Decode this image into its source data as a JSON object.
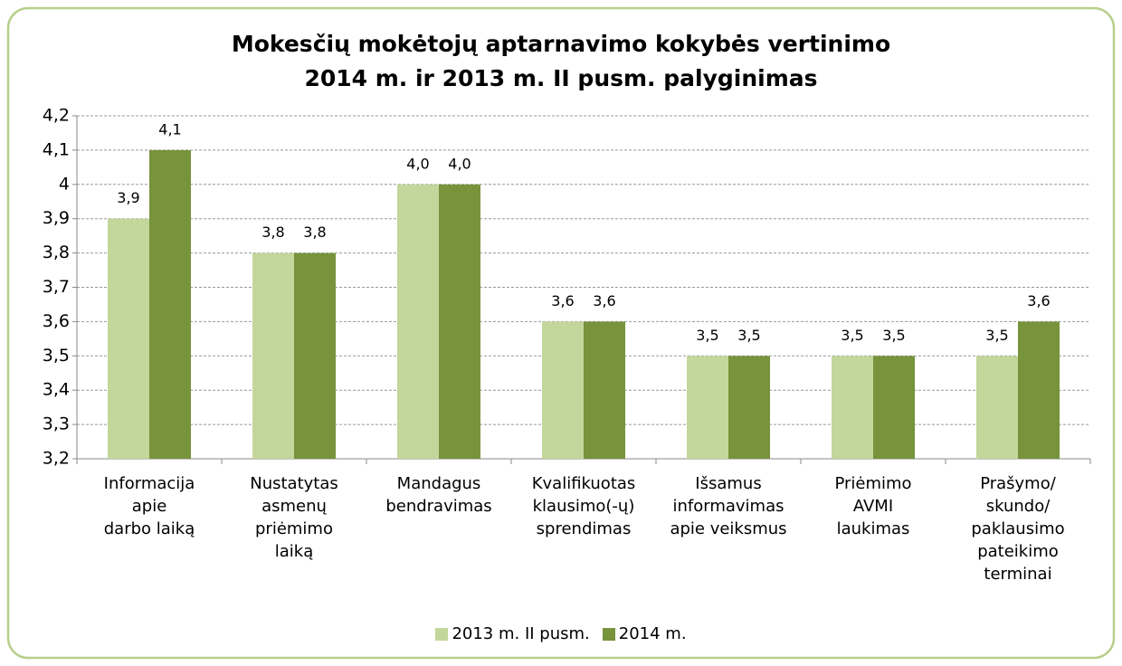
{
  "chart_data": {
    "type": "bar",
    "title": "Mokesčių mokėtojų aptarnavimo kokybės vertinimo\n2014 m. ir 2013 m. II pusm. palyginimas",
    "categories": [
      "Informacija\napie\ndarbo laiką",
      "Nustatytas\nasmenų\npriėmimo\nlaiką",
      "Mandagus\nbendravimas",
      "Kvalifikuotas\nklausimo(-ų)\nsprendimas",
      "Išsamus\ninformavimas\napie veiksmus",
      "Priėmimo\nAVMI\nlaukimas",
      "Prašymo/\nskundo/\npaklausimo\npateikimo\nterminai"
    ],
    "series": [
      {
        "name": "2013 m. II pusm.",
        "color": "#c3d69b",
        "values": [
          3.9,
          3.8,
          4.0,
          3.6,
          3.5,
          3.5,
          3.5
        ],
        "value_labels": [
          "3,9",
          "3,8",
          "4,0",
          "3,6",
          "3,5",
          "3,5",
          "3,5"
        ]
      },
      {
        "name": "2014 m.",
        "color": "#77933c",
        "values": [
          4.1,
          3.8,
          4.0,
          3.6,
          3.5,
          3.5,
          3.6
        ],
        "value_labels": [
          "4,1",
          "3,8",
          "4,0",
          "3,6",
          "3,5",
          "3,5",
          "3,6"
        ]
      }
    ],
    "ylim": [
      3.2,
      4.2
    ],
    "yticks": [
      {
        "value": 3.2,
        "label": "3,2"
      },
      {
        "value": 3.3,
        "label": "3,3"
      },
      {
        "value": 3.4,
        "label": "3,4"
      },
      {
        "value": 3.5,
        "label": "3,5"
      },
      {
        "value": 3.6,
        "label": "3,6"
      },
      {
        "value": 3.7,
        "label": "3,7"
      },
      {
        "value": 3.8,
        "label": "3,8"
      },
      {
        "value": 3.9,
        "label": "3,9"
      },
      4,
      {
        "value": 4.1,
        "label": "4,1"
      },
      {
        "value": 4.2,
        "label": "4,2"
      }
    ],
    "grid": true,
    "legend": "bottom"
  }
}
